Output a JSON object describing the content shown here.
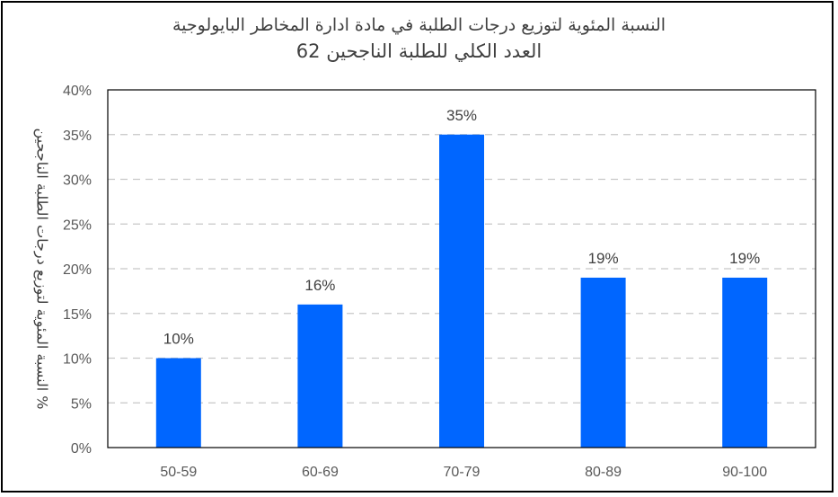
{
  "chart_data": {
    "type": "bar",
    "title_lines": [
      "النسبة المئوية لتوزيع درجات الطلبة في مادة ادارة المخاطر البايولوجية",
      "العدد الكلي للطلبة الناجحين 62"
    ],
    "categories": [
      "50-59",
      "60-69",
      "70-79",
      "80-89",
      "90-100"
    ],
    "values": [
      10,
      16,
      35,
      19,
      19
    ],
    "data_labels": [
      "10%",
      "16%",
      "35%",
      "19%",
      "19%"
    ],
    "ylabel": "% النسبة المئوية لتوزيع درجات الطلبة الناجحين",
    "xlabel": "",
    "ylim": [
      0,
      40
    ],
    "y_ticks": [
      0,
      5,
      10,
      15,
      20,
      25,
      30,
      35,
      40
    ],
    "y_tick_labels": [
      "0%",
      "5%",
      "10%",
      "15%",
      "20%",
      "25%",
      "30%",
      "35%",
      "40%"
    ],
    "grid": true,
    "grid_style": "dashed",
    "bar_color": "#0066FF",
    "legend": "none"
  }
}
